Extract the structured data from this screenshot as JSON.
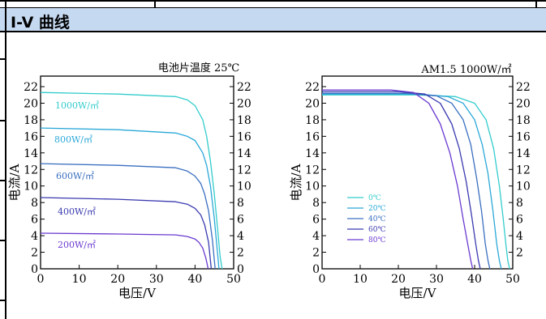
{
  "header": {
    "title": "I-V 曲线"
  },
  "colors": {
    "header_bg": "#c5d9f1"
  },
  "chart_data": [
    {
      "type": "line",
      "title": "电池片温度 25℃",
      "xlabel": "电压/V",
      "ylabel": "电流/A",
      "xlim": [
        0,
        50
      ],
      "ylim": [
        0,
        22
      ],
      "xticks": [
        "0",
        "10",
        "20",
        "30",
        "40",
        "50"
      ],
      "yticks_left": [
        "0",
        "2",
        "4",
        "6",
        "8",
        "10",
        "12",
        "14",
        "16",
        "18",
        "20",
        "22"
      ],
      "yticks_right": [
        "0",
        "2",
        "4",
        "6",
        "8",
        "10",
        "12",
        "14",
        "16",
        "18",
        "20",
        "22"
      ],
      "grid": false,
      "series": [
        {
          "name": "1000W/㎡",
          "color": "#33cccc",
          "x": [
            0,
            20,
            35,
            38,
            40,
            42,
            43,
            44,
            45,
            46,
            46.5,
            47
          ],
          "y": [
            21.3,
            21.1,
            20.8,
            20.4,
            19.7,
            18.0,
            16.0,
            13.0,
            9.0,
            4.0,
            1.5,
            0
          ]
        },
        {
          "name": "800W/㎡",
          "color": "#2aa8d8",
          "x": [
            0,
            20,
            35,
            38,
            40,
            42,
            43,
            44,
            45,
            45.5,
            46.2
          ],
          "y": [
            17.0,
            16.8,
            16.4,
            16.0,
            15.5,
            14.0,
            12.5,
            10.0,
            6.0,
            3.5,
            0
          ]
        },
        {
          "name": "600W/㎡",
          "color": "#3a6fc0",
          "x": [
            0,
            20,
            35,
            38,
            40,
            41.5,
            42.5,
            43.5,
            44.5,
            45.2
          ],
          "y": [
            12.7,
            12.5,
            12.2,
            11.8,
            11.2,
            10.3,
            9.0,
            7.0,
            3.5,
            0
          ]
        },
        {
          "name": "400W/㎡",
          "color": "#3a3ab0",
          "x": [
            0,
            20,
            35,
            38,
            40,
            41.5,
            42.5,
            43.5,
            44.2
          ],
          "y": [
            8.6,
            8.4,
            8.1,
            7.8,
            7.3,
            6.5,
            5.3,
            3.2,
            0
          ]
        },
        {
          "name": "200W/㎡",
          "color": "#6a3ad0",
          "x": [
            0,
            20,
            35,
            38,
            40,
            41,
            42,
            42.8,
            43.4
          ],
          "y": [
            4.3,
            4.2,
            4.1,
            3.9,
            3.6,
            3.2,
            2.5,
            1.3,
            0
          ]
        }
      ]
    },
    {
      "type": "line",
      "title": "AM1.5 1000W/㎡",
      "xlabel": "电压/V",
      "ylabel": "电流/A",
      "xlim": [
        0,
        50
      ],
      "ylim": [
        0,
        22
      ],
      "xticks": [
        "0",
        "10",
        "20",
        "30",
        "40",
        "50"
      ],
      "yticks_left": [
        "0",
        "2",
        "4",
        "6",
        "8",
        "10",
        "12",
        "14",
        "16",
        "18",
        "20",
        "22"
      ],
      "yticks_right": [
        "2",
        "4",
        "6",
        "8",
        "10",
        "12",
        "14",
        "16",
        "18",
        "20",
        "22"
      ],
      "grid": false,
      "legend": "center-left",
      "series": [
        {
          "name": "0℃",
          "color": "#33cccc",
          "x": [
            0,
            25,
            35,
            40,
            43,
            45,
            46.5,
            47.5,
            48.2,
            48.7,
            49.2
          ],
          "y": [
            21.0,
            21.0,
            20.8,
            20.0,
            18.0,
            14.5,
            10.0,
            6.0,
            3.0,
            1.0,
            0
          ]
        },
        {
          "name": "20℃",
          "color": "#2aa8d8",
          "x": [
            0,
            25,
            33,
            37,
            40,
            42,
            43.5,
            44.8,
            45.8,
            46.5,
            47.0
          ],
          "y": [
            21.1,
            21.1,
            20.8,
            20.0,
            18.0,
            15.0,
            11.5,
            7.0,
            3.0,
            1.0,
            0
          ]
        },
        {
          "name": "40℃",
          "color": "#3a6fc0",
          "x": [
            0,
            22,
            30,
            34,
            37,
            39,
            40.5,
            41.8,
            42.8,
            43.5,
            44.0
          ],
          "y": [
            21.2,
            21.2,
            20.9,
            20.0,
            18.0,
            15.0,
            11.0,
            7.0,
            3.0,
            1.0,
            0
          ]
        },
        {
          "name": "60℃",
          "color": "#3a3ab0",
          "x": [
            0,
            20,
            27,
            31,
            34,
            36,
            37.8,
            39.2,
            40.3,
            41.0,
            41.5
          ],
          "y": [
            21.4,
            21.4,
            21.1,
            20.0,
            17.5,
            14.5,
            10.5,
            6.5,
            3.0,
            1.0,
            0
          ]
        },
        {
          "name": "80℃",
          "color": "#6a3ad0",
          "x": [
            0,
            18,
            24,
            28,
            31,
            33.5,
            35.5,
            37.0,
            38.2,
            39.0,
            39.5
          ],
          "y": [
            21.6,
            21.6,
            21.3,
            20.0,
            17.5,
            14.0,
            10.0,
            6.0,
            3.0,
            1.0,
            0
          ]
        }
      ]
    }
  ]
}
